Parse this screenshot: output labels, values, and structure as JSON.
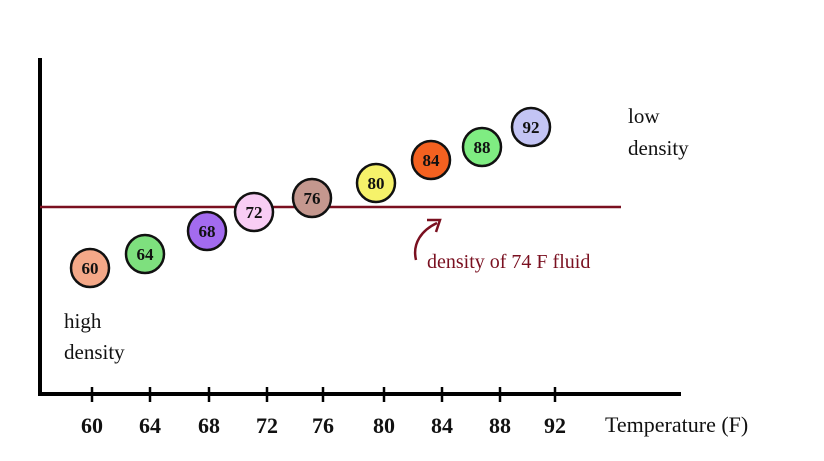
{
  "chart_data": {
    "type": "scatter",
    "x_axis": {
      "title": "Temperature (F)",
      "ticks": [
        "60",
        "64",
        "68",
        "72",
        "76",
        "80",
        "84",
        "88",
        "92"
      ]
    },
    "y_axis": {
      "title": ""
    },
    "grid": false,
    "points": [
      {
        "label": "60",
        "color": "#f4a888"
      },
      {
        "label": "64",
        "color": "#7ee07e"
      },
      {
        "label": "68",
        "color": "#a36bef"
      },
      {
        "label": "72",
        "color": "#f8cdf4"
      },
      {
        "label": "76",
        "color": "#c4978e"
      },
      {
        "label": "80",
        "color": "#f6f26a"
      },
      {
        "label": "84",
        "color": "#f46120"
      },
      {
        "label": "88",
        "color": "#7fed82"
      },
      {
        "label": "92",
        "color": "#c3c4f4"
      }
    ],
    "reference_line": {
      "label": "density of 74 F fluid",
      "color": "#7a1020"
    },
    "annotations": {
      "top_right": [
        "low",
        "density"
      ],
      "bottom_left": [
        "high",
        "density"
      ]
    }
  }
}
